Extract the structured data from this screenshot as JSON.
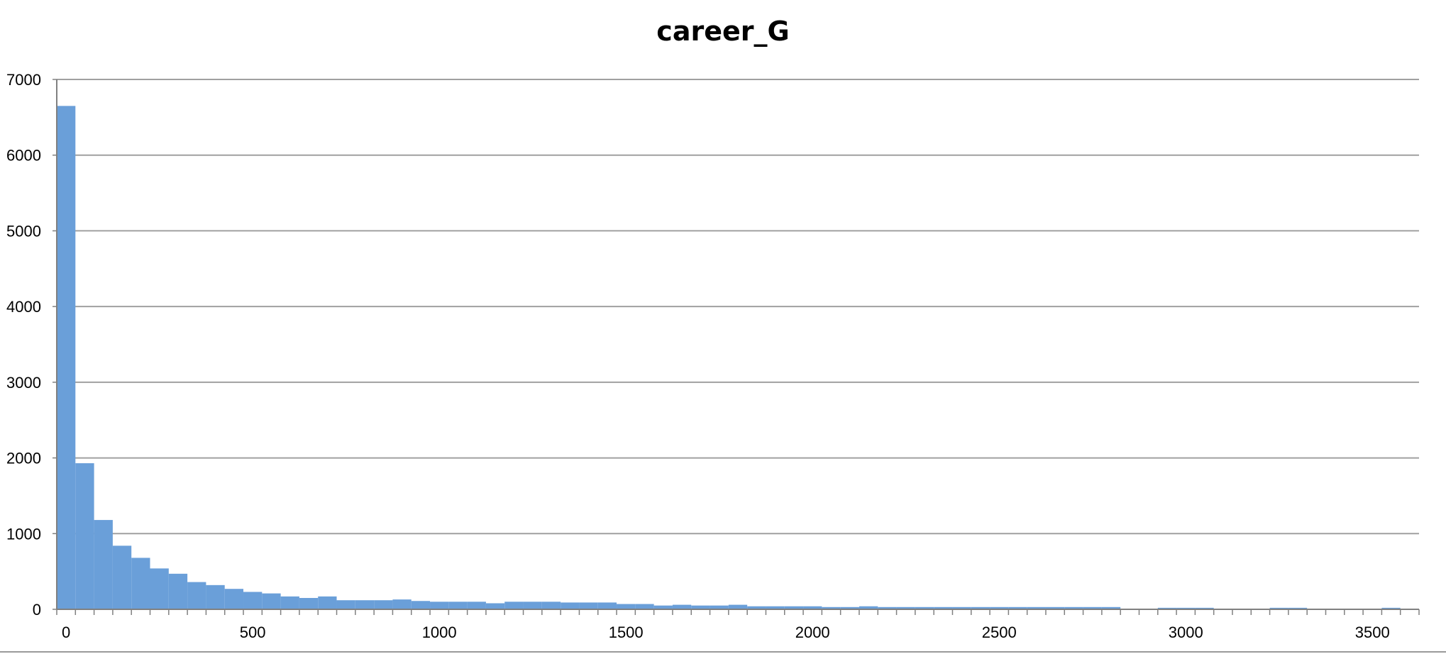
{
  "chart_data": {
    "type": "bar",
    "title": "career_G",
    "xlabel": "",
    "ylabel": "",
    "bin_width": 50,
    "xlim": [
      -25,
      3625
    ],
    "ylim": [
      0,
      7000
    ],
    "grid": "horizontal",
    "legend": "none",
    "y_ticks": [
      "0",
      "1000",
      "2000",
      "3000",
      "4000",
      "5000",
      "6000",
      "7000"
    ],
    "x_ticks": [
      "0",
      "500",
      "1000",
      "1500",
      "2000",
      "2500",
      "3000",
      "3500"
    ],
    "x_tick_values": [
      0,
      500,
      1000,
      1500,
      2000,
      2500,
      3000,
      3500
    ],
    "y_tick_values": [
      0,
      1000,
      2000,
      3000,
      4000,
      5000,
      6000,
      7000
    ],
    "bin_centers": [
      0,
      50,
      100,
      150,
      200,
      250,
      300,
      350,
      400,
      450,
      500,
      550,
      600,
      650,
      700,
      750,
      800,
      850,
      900,
      950,
      1000,
      1050,
      1100,
      1150,
      1200,
      1250,
      1300,
      1350,
      1400,
      1450,
      1500,
      1550,
      1600,
      1650,
      1700,
      1750,
      1800,
      1850,
      1900,
      1950,
      2000,
      2050,
      2100,
      2150,
      2200,
      2250,
      2300,
      2350,
      2400,
      2450,
      2500,
      2550,
      2600,
      2650,
      2700,
      2750,
      2800,
      2850,
      2900,
      2950,
      3000,
      3050,
      3100,
      3150,
      3200,
      3250,
      3300,
      3350,
      3400,
      3450,
      3500,
      3550
    ],
    "values": [
      6650,
      1930,
      1180,
      840,
      680,
      540,
      470,
      360,
      320,
      270,
      230,
      210,
      170,
      150,
      170,
      120,
      120,
      120,
      130,
      110,
      100,
      100,
      100,
      80,
      100,
      100,
      100,
      90,
      90,
      90,
      70,
      70,
      50,
      60,
      50,
      50,
      60,
      40,
      40,
      40,
      40,
      30,
      30,
      40,
      30,
      30,
      30,
      30,
      30,
      30,
      30,
      30,
      30,
      30,
      30,
      30,
      30,
      0,
      0,
      20,
      20,
      20,
      0,
      0,
      0,
      20,
      20,
      0,
      0,
      0,
      0,
      20
    ],
    "colors": {
      "bar": "#6a9fd9",
      "grid": "#a0a0a0",
      "axis": "#808080"
    }
  }
}
